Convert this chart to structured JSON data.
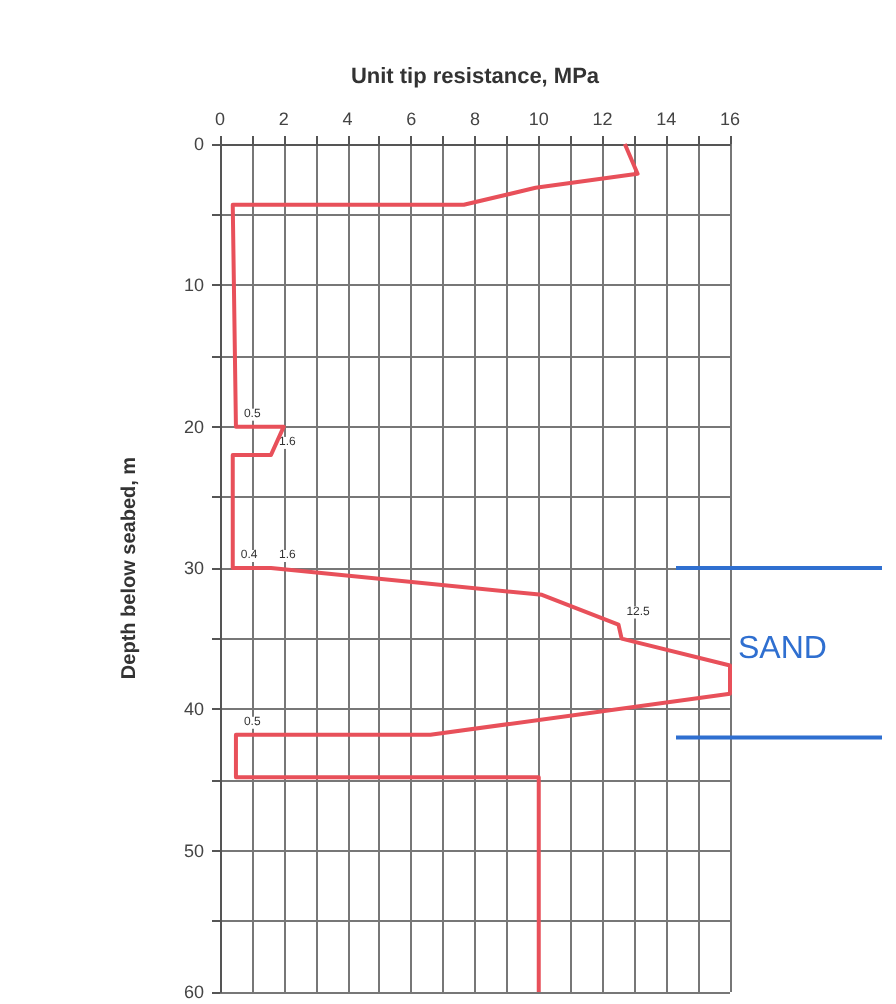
{
  "chart_data": {
    "type": "line",
    "xlabel": "Unit tip resistance, MPa",
    "ylabel": "Depth below seabed, m",
    "series": [
      {
        "color": "#e8505a",
        "x": [
          12.7,
          13.1,
          9.9,
          7.65,
          0.4,
          0.5,
          2.0,
          1.6,
          0.4,
          0.4,
          1.6,
          10.1,
          12.5,
          12.6,
          16.0,
          16.0,
          6.6,
          0.5,
          0.5,
          10.0,
          10.0
        ],
        "values": [
          0,
          2.1,
          3.1,
          4.3,
          4.3,
          20,
          20,
          22,
          22,
          30,
          30,
          31.9,
          34,
          35,
          36.9,
          38.9,
          41.8,
          41.8,
          44.8,
          44.8,
          60
        ]
      }
    ],
    "xlim": [
      0,
      16
    ],
    "xticks": [
      0,
      {
        "value": 1,
        "label": null
      },
      2,
      {
        "value": 3,
        "label": null
      },
      4,
      {
        "value": 5,
        "label": null
      },
      6,
      {
        "value": 7,
        "label": null
      },
      8,
      {
        "value": 9,
        "label": null
      },
      10,
      {
        "value": 11,
        "label": null
      },
      12,
      {
        "value": 13,
        "label": null
      },
      14,
      {
        "value": 15,
        "label": null
      },
      16
    ],
    "ylim": [
      60,
      0
    ],
    "yticks": [
      0,
      {
        "value": 5,
        "label": null
      },
      10,
      {
        "value": 15,
        "label": null
      },
      20,
      {
        "value": 25,
        "label": null
      },
      30,
      {
        "value": 35,
        "label": null
      },
      40,
      {
        "value": 45,
        "label": null
      },
      50,
      {
        "value": 55,
        "label": null
      },
      60
    ],
    "grid": true,
    "marker": "none",
    "line_style": "solid",
    "ref_lines": [
      {
        "axis": "y",
        "value": 30,
        "label": null,
        "color": "#2f6fd0"
      },
      {
        "axis": "y",
        "value": 42,
        "label": null,
        "color": "#2f6fd0"
      }
    ],
    "annotations": [
      "SAND",
      {
        "text": "0.5",
        "x": 0.5,
        "y": 20
      },
      {
        "text": "1.6",
        "x": 1.6,
        "y": 22
      },
      {
        "text": "1.6",
        "x": 1.6,
        "y": 30
      },
      {
        "text": "0.4",
        "x": 0.4,
        "y": 30
      },
      {
        "text": "12.5",
        "x": 12.5,
        "y": 34
      },
      {
        "text": "0.5",
        "x": 0.5,
        "y": 41.8
      }
    ]
  }
}
